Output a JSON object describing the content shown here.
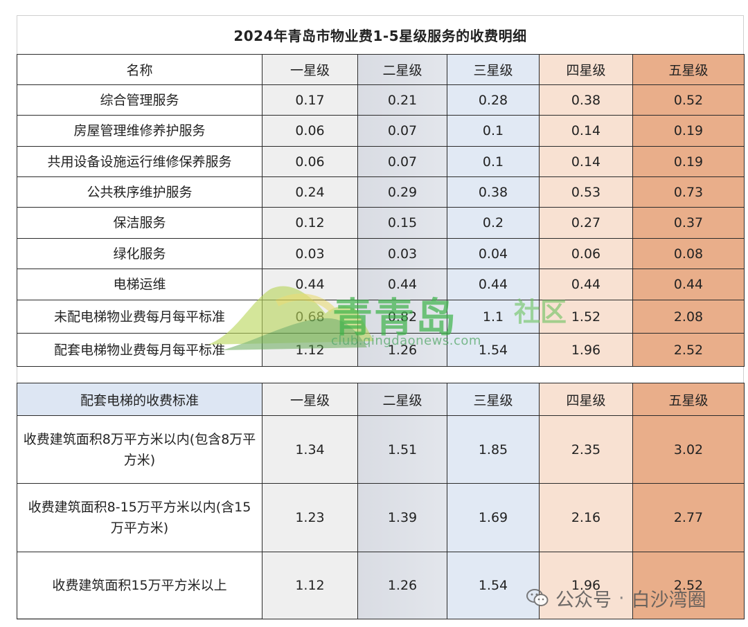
{
  "title": "2024年青岛市物业费1-5星级服务的收费明细",
  "table1": {
    "header": [
      "名称",
      "一星级",
      "二星级",
      "三星级",
      "四星级",
      "五星级"
    ],
    "rows": [
      {
        "name": "综合管理服务",
        "values": [
          "0.17",
          "0.21",
          "0.28",
          "0.38",
          "0.52"
        ]
      },
      {
        "name": "房屋管理维修养护服务",
        "values": [
          "0.06",
          "0.07",
          "0.1",
          "0.14",
          "0.19"
        ]
      },
      {
        "name": "共用设备设施运行维修保养服务",
        "values": [
          "0.06",
          "0.07",
          "0.1",
          "0.14",
          "0.19"
        ]
      },
      {
        "name": "公共秩序维护服务",
        "values": [
          "0.24",
          "0.29",
          "0.38",
          "0.53",
          "0.73"
        ]
      },
      {
        "name": "保洁服务",
        "values": [
          "0.12",
          "0.15",
          "0.2",
          "0.27",
          "0.37"
        ]
      },
      {
        "name": "绿化服务",
        "values": [
          "0.03",
          "0.03",
          "0.04",
          "0.06",
          "0.08"
        ]
      },
      {
        "name": "电梯运维",
        "values": [
          "0.44",
          "0.44",
          "0.44",
          "0.44",
          "0.44"
        ]
      },
      {
        "name": "未配电梯物业费每月每平标准",
        "values": [
          "0.68",
          "0.82",
          "1.1",
          "1.52",
          "2.08"
        ]
      },
      {
        "name": "配套电梯物业费每月每平标准",
        "values": [
          "1.12",
          "1.26",
          "1.54",
          "1.96",
          "2.52"
        ]
      }
    ]
  },
  "table2": {
    "header": [
      "配套电梯的收费标准",
      "一星级",
      "二星级",
      "三星级",
      "四星级",
      "五星级"
    ],
    "rows": [
      {
        "name": "收费建筑面积8万平方米以内(包含8万平方米)",
        "values": [
          "1.34",
          "1.51",
          "1.85",
          "2.35",
          "3.02"
        ]
      },
      {
        "name": "收费建筑面积8-15万平方米以内(含15万平方米)",
        "values": [
          "1.23",
          "1.39",
          "1.69",
          "2.16",
          "2.77"
        ]
      },
      {
        "name": "收费建筑面积15万平方米以上",
        "values": [
          "1.12",
          "1.26",
          "1.54",
          "1.96",
          "2.52"
        ]
      }
    ]
  },
  "watermark": {
    "brand": "青青岛",
    "suffix": "社区",
    "url": "club.qingdaonews.com"
  },
  "wechat": {
    "label": "公众号",
    "sep": "·",
    "account": "白沙湾圈"
  },
  "colors": {
    "star1": "#efefef",
    "star2": "#dfe2e8",
    "star3": "#e1e9f4",
    "star4": "#f8e1d2",
    "star5": "#e9ae8a",
    "header_blue": "#dde6f3",
    "watermark_green": "#3db34a"
  }
}
